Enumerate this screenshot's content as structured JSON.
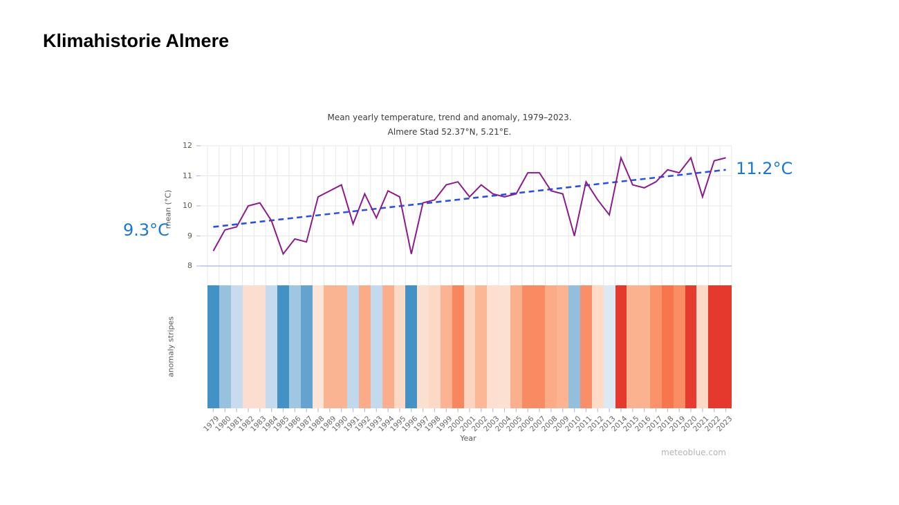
{
  "page": {
    "title": "Klimahistorie Almere",
    "watermark": "meteoblue.com"
  },
  "chart_data": {
    "type": "line",
    "title": "Mean yearly temperature, trend and anomaly, 1979–2023.",
    "subtitle": "Almere Stad 52.37°N, 5.21°E.",
    "xlabel": "Year",
    "ylabel": "mean (°C)",
    "stripes_label": "anomaly stripes",
    "ylim": [
      8,
      12
    ],
    "yticks": [
      8,
      9,
      10,
      11,
      12
    ],
    "grid": true,
    "legend": "none",
    "x": [
      1979,
      1980,
      1981,
      1982,
      1983,
      1984,
      1985,
      1986,
      1987,
      1988,
      1989,
      1990,
      1991,
      1992,
      1993,
      1994,
      1995,
      1996,
      1997,
      1998,
      1999,
      2000,
      2001,
      2002,
      2003,
      2004,
      2005,
      2006,
      2007,
      2008,
      2009,
      2010,
      2011,
      2012,
      2013,
      2014,
      2015,
      2016,
      2017,
      2018,
      2019,
      2020,
      2021,
      2022,
      2023
    ],
    "series": [
      {
        "name": "mean yearly temperature",
        "type": "line",
        "color": "#8c1a8c",
        "values": [
          8.5,
          9.2,
          9.3,
          10.0,
          10.1,
          9.5,
          8.4,
          8.9,
          8.8,
          10.3,
          10.5,
          10.7,
          9.4,
          10.4,
          9.6,
          10.5,
          10.3,
          8.4,
          10.1,
          10.2,
          10.7,
          10.8,
          10.3,
          10.7,
          10.4,
          10.3,
          10.4,
          11.1,
          11.1,
          10.5,
          10.4,
          9.0,
          10.8,
          10.2,
          9.7,
          11.6,
          10.7,
          10.6,
          10.8,
          11.2,
          11.1,
          11.6,
          10.3,
          11.5,
          11.6
        ]
      },
      {
        "name": "linear trend",
        "type": "dashed-line",
        "color": "#2a52dc",
        "start_value": 9.3,
        "end_value": 11.2,
        "start_label": "9.3°C",
        "end_label": "11.2°C",
        "label_color": "#1a78d2"
      }
    ],
    "stripes": {
      "name": "anomaly stripes",
      "type": "heatmap",
      "colors": [
        "#4292c6",
        "#97c2dd",
        "#c9dcee",
        "#fcded0",
        "#fcded0",
        "#c5daee",
        "#4292c6",
        "#9fc7e0",
        "#62a3cf",
        "#fce4d6",
        "#fbb491",
        "#fbb491",
        "#c0d8ec",
        "#fbab87",
        "#c3d9ed",
        "#fbae8c",
        "#fcd9c5",
        "#4292c6",
        "#fce0cf",
        "#fcd9c4",
        "#fbb394",
        "#f9875e",
        "#fcd5c0",
        "#fbb796",
        "#fcdfd0",
        "#fce1d3",
        "#fbb08d",
        "#f98b63",
        "#f98b63",
        "#fbab85",
        "#fbb392",
        "#92bfdb",
        "#f98f68",
        "#fddbc7",
        "#dce8f3",
        "#e6392e",
        "#fbb28f",
        "#fbb28f",
        "#fa9369",
        "#f8764e",
        "#f98e64",
        "#e63b2e",
        "#fcd8c7",
        "#e6392e",
        "#e6392e"
      ]
    },
    "style": {
      "grid_color": "#e7e7e7",
      "baseline_color": "#a9b0dc",
      "tick_color": "#b4bce9"
    }
  }
}
